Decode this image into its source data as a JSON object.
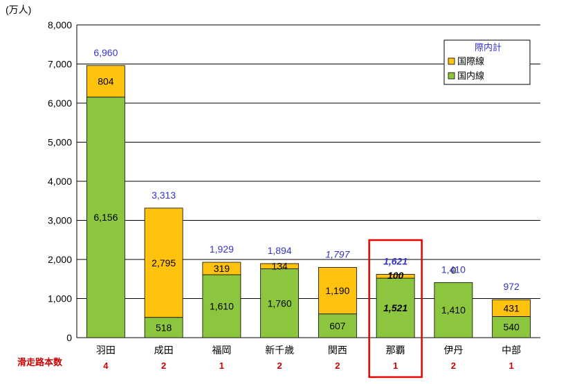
{
  "chart_data": {
    "type": "bar",
    "stacked": true,
    "unit_label": "(万人)",
    "categories": [
      "羽田",
      "成田",
      "福岡",
      "新千歳",
      "関西",
      "那覇",
      "伊丹",
      "中部"
    ],
    "series": [
      {
        "name": "国内線",
        "color": "#8cc63e",
        "values": [
          6156,
          518,
          1610,
          1760,
          607,
          1521,
          1410,
          540
        ]
      },
      {
        "name": "国際線",
        "color": "#ffc20e",
        "values": [
          804,
          2795,
          319,
          134,
          1190,
          100,
          0,
          431
        ]
      }
    ],
    "totals": [
      6960,
      3313,
      1929,
      1894,
      1797,
      1621,
      1410,
      972
    ],
    "legend_title": "際内計",
    "ylim": [
      0,
      8000
    ],
    "yticks": [
      0,
      1000,
      2000,
      3000,
      4000,
      5000,
      6000,
      7000,
      8000
    ],
    "grid": true,
    "highlight_category": "那覇",
    "runway_label": "滑走路本数",
    "runways": [
      "4",
      "2",
      "1",
      "2",
      "2",
      "1",
      "2",
      "1"
    ]
  }
}
